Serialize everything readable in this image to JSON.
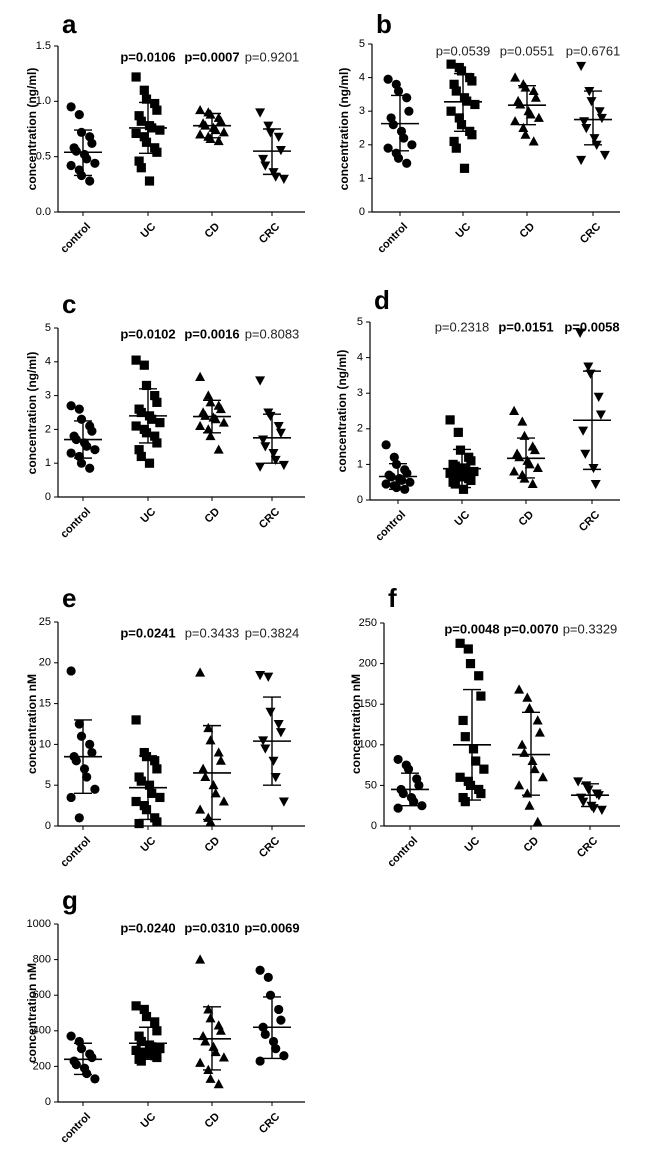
{
  "chart_data": [
    {
      "type": "scatter",
      "panel": "a",
      "ylabel": "concentration (ng/ml)",
      "ylim": [
        0,
        1.5
      ],
      "yticks": [
        "0.0",
        "0.5",
        "1.0",
        "1.5"
      ],
      "categories": [
        "control",
        "UC",
        "CD",
        "CRC"
      ],
      "markers": [
        "circle",
        "square",
        "triangle-up",
        "triangle-down"
      ],
      "pvalues": [
        {
          "group": "UC",
          "text": "p=0.0106",
          "bold": true
        },
        {
          "group": "CD",
          "text": "p=0.0007",
          "bold": true
        },
        {
          "group": "CRC",
          "text": "p=0.9201",
          "bold": false
        }
      ],
      "series": [
        {
          "name": "control",
          "mean": 0.54,
          "sd": [
            0.33,
            0.74
          ],
          "values": [
            0.95,
            0.88,
            0.72,
            0.68,
            0.62,
            0.58,
            0.55,
            0.52,
            0.48,
            0.44,
            0.42,
            0.38,
            0.33,
            0.28
          ]
        },
        {
          "name": "UC",
          "mean": 0.76,
          "sd": [
            0.53,
            0.99
          ],
          "values": [
            1.22,
            1.1,
            1.02,
            0.98,
            0.92,
            0.87,
            0.82,
            0.78,
            0.76,
            0.74,
            0.71,
            0.68,
            0.63,
            0.58,
            0.54,
            0.46,
            0.4,
            0.28
          ]
        },
        {
          "name": "CD",
          "mean": 0.78,
          "sd": [
            0.67,
            0.89
          ],
          "values": [
            0.92,
            0.9,
            0.88,
            0.85,
            0.82,
            0.8,
            0.78,
            0.76,
            0.74,
            0.72,
            0.7,
            0.68,
            0.66,
            0.64
          ]
        },
        {
          "name": "CRC",
          "mean": 0.55,
          "sd": [
            0.34,
            0.75
          ],
          "values": [
            0.9,
            0.78,
            0.72,
            0.68,
            0.56,
            0.48,
            0.42,
            0.36,
            0.32,
            0.3
          ]
        }
      ]
    },
    {
      "type": "scatter",
      "panel": "b",
      "ylabel": "concentration (ng/ml)",
      "ylim": [
        0,
        5
      ],
      "yticks": [
        "0",
        "1",
        "2",
        "3",
        "4",
        "5"
      ],
      "categories": [
        "control",
        "UC",
        "CD",
        "CRC"
      ],
      "markers": [
        "circle",
        "square",
        "triangle-up",
        "triangle-down"
      ],
      "pvalues": [
        {
          "group": "UC",
          "text": "p=0.0539",
          "bold": false
        },
        {
          "group": "CD",
          "text": "p=0.0551",
          "bold": false
        },
        {
          "group": "CRC",
          "text": "p=0.6761",
          "bold": false
        }
      ],
      "series": [
        {
          "name": "control",
          "mean": 2.63,
          "sd": [
            1.82,
            3.47
          ],
          "values": [
            3.95,
            3.8,
            3.6,
            3.4,
            3.0,
            2.8,
            2.6,
            2.4,
            2.2,
            2.0,
            1.9,
            1.75,
            1.6,
            1.45
          ]
        },
        {
          "name": "UC",
          "mean": 3.28,
          "sd": [
            2.4,
            4.12
          ],
          "values": [
            4.4,
            4.3,
            4.2,
            4.0,
            3.9,
            3.8,
            3.6,
            3.4,
            3.3,
            3.2,
            3.0,
            2.8,
            2.6,
            2.4,
            2.3,
            2.1,
            1.9,
            1.3
          ]
        },
        {
          "name": "CD",
          "mean": 3.18,
          "sd": [
            2.6,
            3.76
          ],
          "values": [
            4.0,
            3.8,
            3.7,
            3.6,
            3.4,
            3.3,
            3.2,
            3.0,
            2.9,
            2.8,
            2.7,
            2.5,
            2.3,
            2.1
          ]
        },
        {
          "name": "CRC",
          "mean": 2.75,
          "sd": [
            2.0,
            3.6
          ],
          "values": [
            4.35,
            3.6,
            3.3,
            3.0,
            2.8,
            2.7,
            2.5,
            2.2,
            2.0,
            1.7,
            1.55
          ]
        }
      ]
    },
    {
      "type": "scatter",
      "panel": "c",
      "ylabel": "concentration (ng/ml)",
      "ylim": [
        0,
        5
      ],
      "yticks": [
        "0",
        "1",
        "2",
        "3",
        "4",
        "5"
      ],
      "categories": [
        "control",
        "UC",
        "CD",
        "CRC"
      ],
      "markers": [
        "circle",
        "square",
        "triangle-up",
        "triangle-down"
      ],
      "pvalues": [
        {
          "group": "UC",
          "text": "p=0.0102",
          "bold": true
        },
        {
          "group": "CD",
          "text": "p=0.0016",
          "bold": true
        },
        {
          "group": "CRC",
          "text": "p=0.8083",
          "bold": false
        }
      ],
      "series": [
        {
          "name": "control",
          "mean": 1.7,
          "sd": [
            1.15,
            2.25
          ],
          "values": [
            2.7,
            2.6,
            2.3,
            2.1,
            1.95,
            1.8,
            1.7,
            1.6,
            1.5,
            1.4,
            1.3,
            1.2,
            1.0,
            0.85
          ]
        },
        {
          "name": "UC",
          "mean": 2.4,
          "sd": [
            1.6,
            3.2
          ],
          "values": [
            4.05,
            3.9,
            3.3,
            3.0,
            2.8,
            2.6,
            2.5,
            2.4,
            2.3,
            2.2,
            2.1,
            2.0,
            1.9,
            1.8,
            1.6,
            1.4,
            1.2,
            1.0
          ]
        },
        {
          "name": "CD",
          "mean": 2.38,
          "sd": [
            1.9,
            2.86
          ],
          "values": [
            3.55,
            3.0,
            2.8,
            2.7,
            2.6,
            2.5,
            2.4,
            2.35,
            2.3,
            2.2,
            2.1,
            2.0,
            1.8,
            1.4
          ]
        },
        {
          "name": "CRC",
          "mean": 1.75,
          "sd": [
            1.0,
            2.45
          ],
          "values": [
            3.45,
            2.5,
            2.4,
            2.1,
            1.9,
            1.7,
            1.5,
            1.3,
            1.1,
            0.95,
            0.9
          ]
        }
      ]
    },
    {
      "type": "scatter",
      "panel": "d",
      "ylabel": "concentration (ng/ml)",
      "ylim": [
        0,
        5
      ],
      "yticks": [
        "0",
        "1",
        "2",
        "3",
        "4",
        "5"
      ],
      "categories": [
        "control",
        "UC",
        "CD",
        "CRC"
      ],
      "markers": [
        "circle",
        "square",
        "triangle-up",
        "triangle-down"
      ],
      "pvalues": [
        {
          "group": "UC",
          "text": "p=0.2318",
          "bold": false
        },
        {
          "group": "CD",
          "text": "p=0.0151",
          "bold": true
        },
        {
          "group": "CRC",
          "text": "p=0.0058",
          "bold": true
        }
      ],
      "series": [
        {
          "name": "control",
          "mean": 0.66,
          "sd": [
            0.3,
            1.02
          ],
          "values": [
            1.55,
            1.2,
            1.0,
            0.85,
            0.75,
            0.7,
            0.65,
            0.6,
            0.55,
            0.5,
            0.45,
            0.4,
            0.35,
            0.3
          ]
        },
        {
          "name": "UC",
          "mean": 0.88,
          "sd": [
            0.35,
            1.42
          ],
          "values": [
            2.25,
            1.9,
            1.4,
            1.2,
            1.1,
            1.0,
            0.95,
            0.9,
            0.85,
            0.8,
            0.75,
            0.7,
            0.65,
            0.6,
            0.55,
            0.5,
            0.45,
            0.3
          ]
        },
        {
          "name": "CD",
          "mean": 1.17,
          "sd": [
            0.62,
            1.74
          ],
          "values": [
            2.5,
            2.2,
            1.8,
            1.5,
            1.4,
            1.3,
            1.2,
            1.1,
            1.0,
            0.9,
            0.8,
            0.7,
            0.6,
            0.45
          ]
        },
        {
          "name": "CRC",
          "mean": 2.24,
          "sd": [
            0.86,
            3.62
          ],
          "values": [
            4.7,
            3.75,
            3.55,
            2.9,
            2.4,
            1.95,
            1.3,
            0.9,
            0.45
          ]
        }
      ]
    },
    {
      "type": "scatter",
      "panel": "e",
      "ylabel": "concentration nM",
      "ylim": [
        0,
        25
      ],
      "yticks": [
        "0",
        "5",
        "10",
        "15",
        "20",
        "25"
      ],
      "categories": [
        "control",
        "UC",
        "CD",
        "CRC"
      ],
      "markers": [
        "circle",
        "square",
        "triangle-up",
        "triangle-down"
      ],
      "pvalues": [
        {
          "group": "UC",
          "text": "p=0.0241",
          "bold": true
        },
        {
          "group": "CD",
          "text": "p=0.3433",
          "bold": false
        },
        {
          "group": "CRC",
          "text": "p=0.3824",
          "bold": false
        }
      ],
      "series": [
        {
          "name": "control",
          "mean": 8.5,
          "sd": [
            4.0,
            13.0
          ],
          "values": [
            19.0,
            12.5,
            11.0,
            10.0,
            9.0,
            8.5,
            8.0,
            7.0,
            6.0,
            4.5,
            3.5,
            1.0
          ]
        },
        {
          "name": "UC",
          "mean": 4.7,
          "sd": [
            0.8,
            8.6
          ],
          "values": [
            13.0,
            9.0,
            8.5,
            8.0,
            7.0,
            6.0,
            5.5,
            5.0,
            4.0,
            3.5,
            3.0,
            2.5,
            2.0,
            1.0,
            0.5,
            0.3
          ]
        },
        {
          "name": "CD",
          "mean": 6.5,
          "sd": [
            0.8,
            12.3
          ],
          "values": [
            18.8,
            12.0,
            10.5,
            9.0,
            8.0,
            7.0,
            6.0,
            5.0,
            4.0,
            3.0,
            2.0,
            1.0,
            0.5
          ]
        },
        {
          "name": "CRC",
          "mean": 10.4,
          "sd": [
            5.0,
            15.8
          ],
          "values": [
            18.5,
            18.3,
            14.0,
            12.5,
            11.5,
            10.5,
            9.5,
            8.0,
            6.0,
            3.0
          ]
        }
      ]
    },
    {
      "type": "scatter",
      "panel": "f",
      "ylabel": "concentration nM",
      "ylim": [
        0,
        250
      ],
      "yticks": [
        "0",
        "50",
        "100",
        "150",
        "200",
        "250"
      ],
      "categories": [
        "control",
        "UC",
        "CD",
        "CRC"
      ],
      "markers": [
        "circle",
        "square",
        "triangle-up",
        "triangle-down"
      ],
      "pvalues": [
        {
          "group": "UC",
          "text": "p=0.0048",
          "bold": true
        },
        {
          "group": "CD",
          "text": "p=0.0070",
          "bold": true
        },
        {
          "group": "CRC",
          "text": "p=0.3329",
          "bold": false
        }
      ],
      "series": [
        {
          "name": "control",
          "mean": 45,
          "sd": [
            25,
            65
          ],
          "values": [
            82,
            75,
            70,
            58,
            50,
            45,
            40,
            35,
            30,
            25,
            22
          ]
        },
        {
          "name": "UC",
          "mean": 100,
          "sd": [
            32,
            168
          ],
          "values": [
            225,
            218,
            200,
            185,
            160,
            130,
            110,
            95,
            80,
            70,
            60,
            55,
            50,
            45,
            40,
            35,
            30
          ]
        },
        {
          "name": "CD",
          "mean": 88,
          "sd": [
            38,
            140
          ],
          "values": [
            168,
            158,
            145,
            130,
            115,
            100,
            90,
            80,
            70,
            60,
            50,
            40,
            25,
            5
          ]
        },
        {
          "name": "CRC",
          "mean": 38,
          "sd": [
            24,
            52
          ],
          "values": [
            55,
            50,
            45,
            40,
            38,
            35,
            30,
            25,
            22,
            20
          ]
        }
      ]
    },
    {
      "type": "scatter",
      "panel": "g",
      "ylabel": "concentration nM",
      "ylim": [
        0,
        1000
      ],
      "yticks": [
        "0",
        "200",
        "400",
        "600",
        "800",
        "1000"
      ],
      "categories": [
        "control",
        "UC",
        "CD",
        "CRC"
      ],
      "markers": [
        "circle",
        "square",
        "triangle-up",
        "circle"
      ],
      "pvalues": [
        {
          "group": "UC",
          "text": "p=0.0240",
          "bold": true
        },
        {
          "group": "CD",
          "text": "p=0.0310",
          "bold": true
        },
        {
          "group": "CRC",
          "text": "p=0.0069",
          "bold": true
        }
      ],
      "series": [
        {
          "name": "control",
          "mean": 240,
          "sd": [
            155,
            330
          ],
          "values": [
            370,
            340,
            300,
            270,
            250,
            230,
            210,
            190,
            160,
            130
          ]
        },
        {
          "name": "UC",
          "mean": 330,
          "sd": [
            240,
            420
          ],
          "values": [
            540,
            520,
            480,
            450,
            400,
            370,
            340,
            320,
            310,
            300,
            290,
            280,
            270,
            260,
            250,
            240,
            230
          ]
        },
        {
          "name": "CD",
          "mean": 355,
          "sd": [
            180,
            535
          ],
          "values": [
            800,
            520,
            470,
            430,
            400,
            370,
            340,
            310,
            280,
            250,
            220,
            180,
            130,
            100
          ]
        },
        {
          "name": "CRC",
          "mean": 420,
          "sd": [
            245,
            590
          ],
          "values": [
            740,
            700,
            600,
            520,
            460,
            420,
            380,
            340,
            300,
            260,
            230
          ]
        }
      ]
    }
  ]
}
